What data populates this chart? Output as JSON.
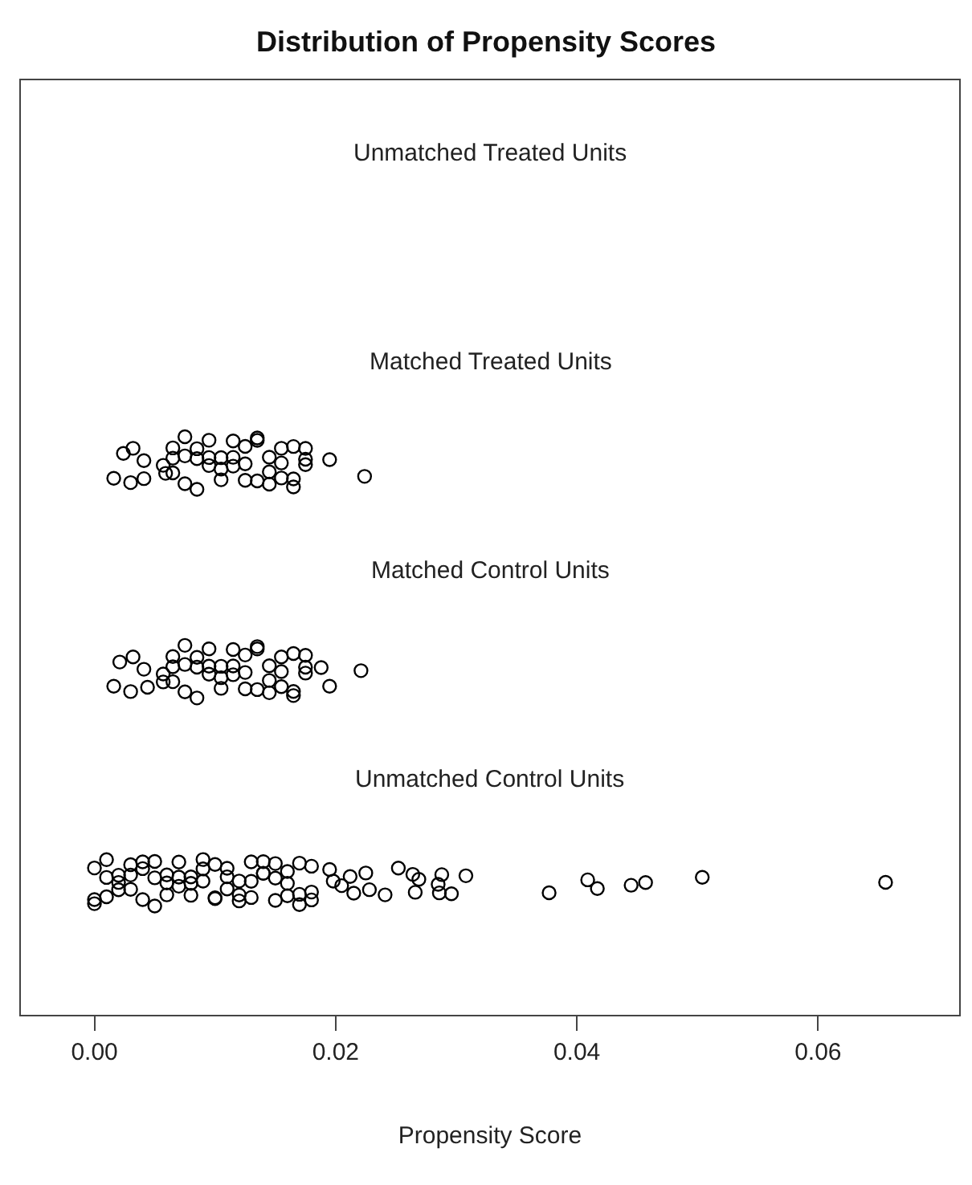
{
  "chart_data": {
    "type": "scatter",
    "orientation": "horizontal",
    "title": "Distribution of Propensity Scores",
    "xlabel": "Propensity Score",
    "marker": "circle",
    "legend": false,
    "xlim": [
      -0.0061,
      0.0717
    ],
    "xticks": [
      {
        "value": 0,
        "label": "0.00"
      },
      0.02,
      0.04,
      0.06
    ],
    "categories": [
      "Unmatched Treated Units",
      "Matched Treated Units",
      "Matched Control Units",
      "Unmatched Control Units"
    ],
    "series": [
      {
        "color": "#000000",
        "x": [
          "Matched Treated Units",
          "Matched Treated Units",
          "Matched Treated Units",
          "Matched Treated Units",
          "Matched Treated Units",
          "Matched Treated Units",
          "Matched Treated Units",
          "Matched Treated Units",
          "Matched Treated Units",
          "Matched Treated Units",
          "Matched Treated Units",
          "Matched Treated Units",
          "Matched Treated Units",
          "Matched Treated Units",
          "Matched Treated Units",
          "Matched Treated Units",
          "Matched Treated Units",
          "Matched Treated Units",
          "Matched Treated Units",
          "Matched Treated Units",
          "Matched Treated Units",
          "Matched Treated Units",
          "Matched Treated Units",
          "Matched Treated Units",
          "Matched Treated Units",
          "Matched Treated Units",
          "Matched Treated Units",
          "Matched Treated Units",
          "Matched Treated Units",
          "Matched Treated Units",
          "Matched Treated Units",
          "Matched Treated Units",
          "Matched Treated Units",
          "Matched Treated Units",
          "Matched Treated Units",
          "Matched Treated Units",
          "Matched Treated Units",
          "Matched Treated Units",
          "Matched Treated Units",
          "Matched Treated Units",
          "Matched Treated Units",
          "Matched Treated Units",
          "Matched Treated Units",
          "Matched Treated Units",
          "Matched Treated Units",
          "Matched Treated Units"
        ],
        "values": [
          0.0016,
          0.0224,
          0.0195,
          0.0024,
          0.003,
          0.0041,
          0.0032,
          0.0041,
          0.0057,
          0.0059,
          0.0065,
          0.0075,
          0.0085,
          0.0095,
          0.0105,
          0.0115,
          0.0125,
          0.0135,
          0.0145,
          0.0155,
          0.0165,
          0.0175,
          0.0065,
          0.0075,
          0.0085,
          0.0095,
          0.0105,
          0.0115,
          0.0125,
          0.0135,
          0.0145,
          0.0155,
          0.0165,
          0.0175,
          0.0065,
          0.0075,
          0.0085,
          0.0095,
          0.0105,
          0.0115,
          0.0125,
          0.0135,
          0.0145,
          0.0155,
          0.0165,
          0.0175
        ]
      },
      {
        "color": "#000000",
        "x": [
          "Matched Control Units",
          "Matched Control Units",
          "Matched Control Units",
          "Matched Control Units",
          "Matched Control Units",
          "Matched Control Units",
          "Matched Control Units",
          "Matched Control Units",
          "Matched Control Units",
          "Matched Control Units",
          "Matched Control Units",
          "Matched Control Units",
          "Matched Control Units",
          "Matched Control Units",
          "Matched Control Units",
          "Matched Control Units",
          "Matched Control Units",
          "Matched Control Units",
          "Matched Control Units",
          "Matched Control Units",
          "Matched Control Units",
          "Matched Control Units",
          "Matched Control Units",
          "Matched Control Units",
          "Matched Control Units",
          "Matched Control Units",
          "Matched Control Units",
          "Matched Control Units",
          "Matched Control Units",
          "Matched Control Units",
          "Matched Control Units",
          "Matched Control Units",
          "Matched Control Units",
          "Matched Control Units",
          "Matched Control Units",
          "Matched Control Units",
          "Matched Control Units",
          "Matched Control Units",
          "Matched Control Units",
          "Matched Control Units",
          "Matched Control Units",
          "Matched Control Units",
          "Matched Control Units",
          "Matched Control Units",
          "Matched Control Units",
          "Matched Control Units",
          "Matched Control Units"
        ],
        "values": [
          0.0016,
          0.0221,
          0.0195,
          0.0188,
          0.0021,
          0.003,
          0.0041,
          0.0032,
          0.0044,
          0.0057,
          0.0057,
          0.0065,
          0.0075,
          0.0085,
          0.0095,
          0.0105,
          0.0115,
          0.0125,
          0.0135,
          0.0145,
          0.0155,
          0.0165,
          0.0175,
          0.0065,
          0.0075,
          0.0085,
          0.0095,
          0.0105,
          0.0115,
          0.0125,
          0.0135,
          0.0145,
          0.0155,
          0.0165,
          0.0175,
          0.0065,
          0.0075,
          0.0085,
          0.0095,
          0.0105,
          0.0115,
          0.0125,
          0.0135,
          0.0145,
          0.0155,
          0.0165,
          0.0175
        ]
      },
      {
        "color": "#000000",
        "x": [
          "Unmatched Control Units",
          "Unmatched Control Units",
          "Unmatched Control Units",
          "Unmatched Control Units",
          "Unmatched Control Units",
          "Unmatched Control Units",
          "Unmatched Control Units",
          "Unmatched Control Units",
          "Unmatched Control Units",
          "Unmatched Control Units",
          "Unmatched Control Units",
          "Unmatched Control Units",
          "Unmatched Control Units",
          "Unmatched Control Units",
          "Unmatched Control Units",
          "Unmatched Control Units",
          "Unmatched Control Units",
          "Unmatched Control Units",
          "Unmatched Control Units",
          "Unmatched Control Units",
          "Unmatched Control Units",
          "Unmatched Control Units",
          "Unmatched Control Units",
          "Unmatched Control Units",
          "Unmatched Control Units",
          "Unmatched Control Units",
          "Unmatched Control Units",
          "Unmatched Control Units",
          "Unmatched Control Units",
          "Unmatched Control Units",
          "Unmatched Control Units",
          "Unmatched Control Units",
          "Unmatched Control Units",
          "Unmatched Control Units",
          "Unmatched Control Units",
          "Unmatched Control Units",
          "Unmatched Control Units",
          "Unmatched Control Units",
          "Unmatched Control Units",
          "Unmatched Control Units",
          "Unmatched Control Units",
          "Unmatched Control Units",
          "Unmatched Control Units",
          "Unmatched Control Units",
          "Unmatched Control Units",
          "Unmatched Control Units",
          "Unmatched Control Units",
          "Unmatched Control Units",
          "Unmatched Control Units",
          "Unmatched Control Units",
          "Unmatched Control Units",
          "Unmatched Control Units",
          "Unmatched Control Units",
          "Unmatched Control Units",
          "Unmatched Control Units",
          "Unmatched Control Units",
          "Unmatched Control Units",
          "Unmatched Control Units",
          "Unmatched Control Units",
          "Unmatched Control Units",
          "Unmatched Control Units",
          "Unmatched Control Units",
          "Unmatched Control Units",
          "Unmatched Control Units",
          "Unmatched Control Units",
          "Unmatched Control Units",
          "Unmatched Control Units",
          "Unmatched Control Units",
          "Unmatched Control Units",
          "Unmatched Control Units",
          "Unmatched Control Units",
          "Unmatched Control Units",
          "Unmatched Control Units",
          "Unmatched Control Units",
          "Unmatched Control Units",
          "Unmatched Control Units",
          "Unmatched Control Units",
          "Unmatched Control Units",
          "Unmatched Control Units",
          "Unmatched Control Units",
          "Unmatched Control Units"
        ],
        "values": [
          0.0417,
          0.0409,
          0.0377,
          0.0445,
          0.0457,
          0.0504,
          0.0656,
          0.0308,
          0.0296,
          0.0288,
          0.0286,
          0.0266,
          0.0264,
          0.0269,
          0.0225,
          0.0228,
          0.0252,
          0.0285,
          0.0241,
          0.0195,
          0.0205,
          0.0212,
          0.0198,
          0.0215,
          0.0,
          0.001,
          0.002,
          0.003,
          0.004,
          0.005,
          0.006,
          0.007,
          0.008,
          0.009,
          0.01,
          0.011,
          0.012,
          0.013,
          0.014,
          0.015,
          0.016,
          0.017,
          0.018,
          0.0,
          0.001,
          0.002,
          0.003,
          0.004,
          0.005,
          0.006,
          0.007,
          0.008,
          0.009,
          0.01,
          0.011,
          0.012,
          0.013,
          0.014,
          0.015,
          0.016,
          0.017,
          0.018,
          0.0,
          0.001,
          0.002,
          0.003,
          0.004,
          0.005,
          0.006,
          0.007,
          0.008,
          0.009,
          0.01,
          0.011,
          0.012,
          0.013,
          0.014,
          0.015,
          0.016,
          0.017,
          0.018
        ]
      }
    ]
  }
}
